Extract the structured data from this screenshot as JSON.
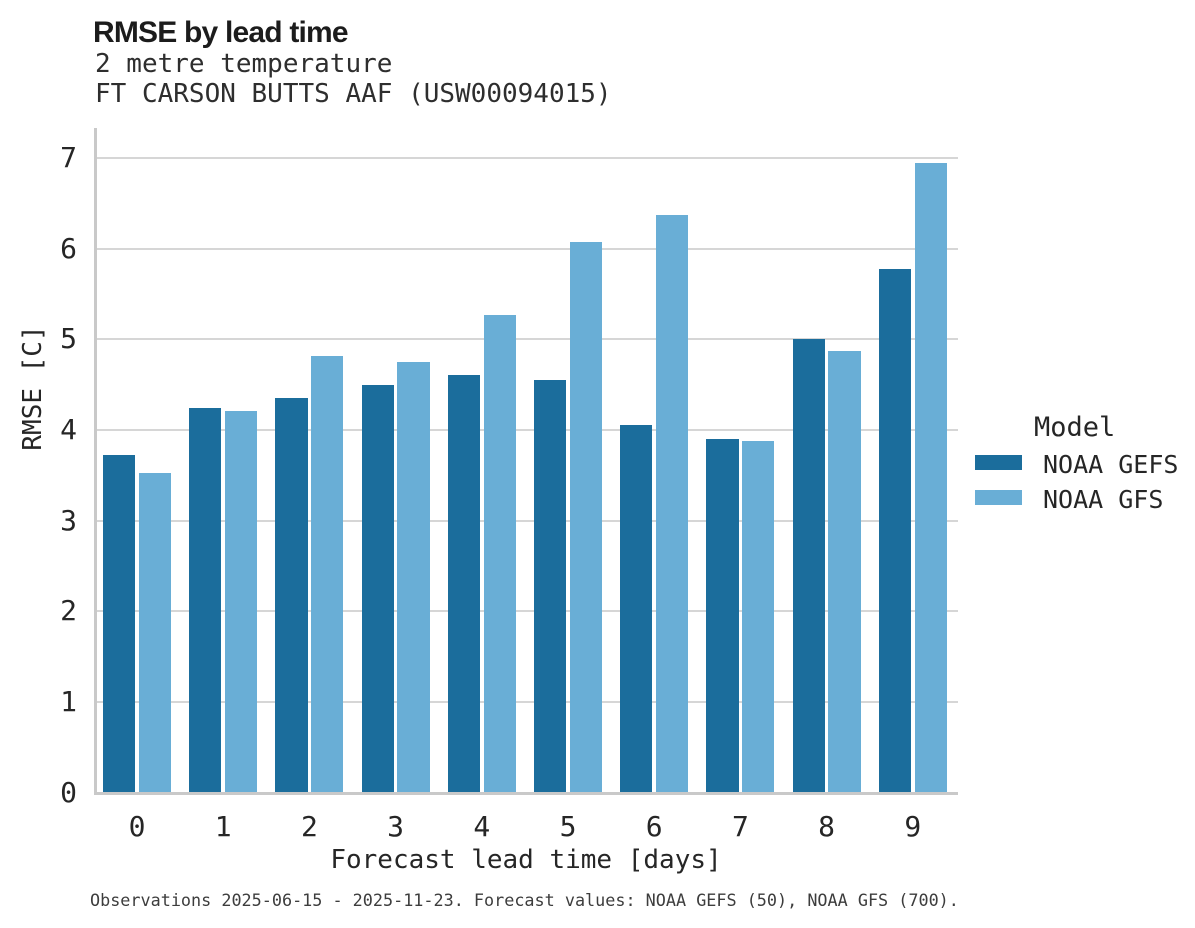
{
  "figure": {
    "title": "RMSE by lead time",
    "subtitle_lines": [
      "2 metre temperature",
      "FT CARSON BUTTS AAF (USW00094015)"
    ],
    "caption": "Observations 2025-06-15 - 2025-11-23. Forecast values: NOAA GEFS (50), NOAA GFS (700)."
  },
  "legend": {
    "title": "Model",
    "items": [
      {
        "label": "NOAA GEFS",
        "color": "#1b6d9c"
      },
      {
        "label": "NOAA GFS",
        "color": "#69aed6"
      }
    ]
  },
  "chart_data": {
    "type": "bar",
    "title": "RMSE by lead time",
    "subtitle": "2 metre temperature",
    "station": "FT CARSON BUTTS AAF (USW00094015)",
    "categories": [
      "0",
      "1",
      "2",
      "3",
      "4",
      "5",
      "6",
      "7",
      "8",
      "9"
    ],
    "series": [
      {
        "name": "NOAA GEFS",
        "color": "#1b6d9c",
        "values": [
          3.72,
          4.24,
          4.35,
          4.5,
          4.61,
          4.55,
          4.05,
          3.9,
          5.0,
          5.78
        ]
      },
      {
        "name": "NOAA GFS",
        "color": "#69aed6",
        "values": [
          3.53,
          4.21,
          4.82,
          4.75,
          5.27,
          6.07,
          6.37,
          3.88,
          4.87,
          6.95
        ]
      }
    ],
    "xlabel": "Forecast lead time [days]",
    "ylabel": "RMSE [C]",
    "ylim": [
      0,
      7.33
    ],
    "yticks": [
      0,
      1,
      2,
      3,
      4,
      5,
      6,
      7
    ],
    "grid": "horizontal",
    "legend_position": "right",
    "legend_title": "Model"
  },
  "colors": {
    "background": "#ffffff",
    "series_gefs": "#1b6d9c",
    "series_gfs": "#69aed6",
    "gridline": "#d6d6d6",
    "axis_line": "#c9c9c9",
    "text": "#262626",
    "caption_text": "#3d3d3d"
  }
}
